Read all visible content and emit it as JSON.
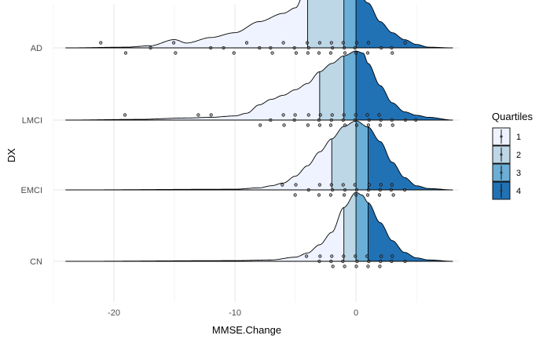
{
  "chart_data": {
    "type": "ridgeline-density-with-jittered-points",
    "xlabel": "MMSE.Change",
    "ylabel": "DX",
    "xlim": [
      -25,
      8.5
    ],
    "x_ticks": [
      -20,
      -10,
      0
    ],
    "x_minor_gridlines": [
      -25,
      -15,
      -5,
      5
    ],
    "grid": true,
    "categories": [
      "CN",
      "EMCI",
      "LMCI",
      "AD"
    ],
    "legend": {
      "title": "Quartiles",
      "position": "right",
      "entries": [
        {
          "label": "1",
          "color": "#EFF3FF"
        },
        {
          "label": "2",
          "color": "#BDD7E7"
        },
        {
          "label": "3",
          "color": "#6BAED6"
        },
        {
          "label": "4",
          "color": "#2171B5"
        }
      ]
    },
    "series": [
      {
        "category": "AD",
        "quartiles": [
          -4,
          -1,
          0
        ],
        "density": [
          [
            -24,
            0.0
          ],
          [
            -19,
            0.01
          ],
          [
            -17,
            0.03
          ],
          [
            -15,
            0.12
          ],
          [
            -14,
            0.07
          ],
          [
            -12,
            0.15
          ],
          [
            -10,
            0.22
          ],
          [
            -8,
            0.38
          ],
          [
            -6,
            0.5
          ],
          [
            -5,
            0.58
          ],
          [
            -4,
            0.92
          ],
          [
            -3,
            0.94
          ],
          [
            -2,
            0.92
          ],
          [
            -1,
            0.88
          ],
          [
            0,
            0.85
          ],
          [
            1,
            0.65
          ],
          [
            2,
            0.38
          ],
          [
            3,
            0.22
          ],
          [
            4,
            0.12
          ],
          [
            5,
            0.05
          ],
          [
            6,
            0.01
          ],
          [
            8,
            0.0
          ]
        ],
        "points": [
          [
            -21,
            -1
          ],
          [
            -19,
            1
          ],
          [
            -17,
            0
          ],
          [
            -15,
            1
          ],
          [
            -15,
            -1
          ],
          [
            -12,
            0
          ],
          [
            -11,
            0
          ],
          [
            -10,
            1
          ],
          [
            -9,
            -1
          ],
          [
            -8,
            0
          ],
          [
            -7,
            1
          ],
          [
            -7,
            0
          ],
          [
            -6,
            -1
          ],
          [
            -5,
            1
          ],
          [
            -5,
            0
          ],
          [
            -4,
            -1
          ],
          [
            -4,
            1
          ],
          [
            -4,
            0
          ],
          [
            -3,
            1
          ],
          [
            -3,
            -1
          ],
          [
            -2,
            0
          ],
          [
            -2,
            1
          ],
          [
            -2,
            -1
          ],
          [
            -1,
            0
          ],
          [
            -1,
            1
          ],
          [
            -1,
            -1
          ],
          [
            0,
            1
          ],
          [
            0,
            -1
          ],
          [
            0,
            0
          ],
          [
            1,
            1
          ],
          [
            1,
            -1
          ],
          [
            2,
            0
          ],
          [
            3,
            0
          ],
          [
            3,
            1
          ],
          [
            4,
            -1
          ]
        ]
      },
      {
        "category": "LMCI",
        "quartiles": [
          -3,
          -1,
          0
        ],
        "density": [
          [
            -24,
            0.0
          ],
          [
            -18,
            0.01
          ],
          [
            -14,
            0.03
          ],
          [
            -12,
            0.04
          ],
          [
            -10,
            0.06
          ],
          [
            -9,
            0.1
          ],
          [
            -8,
            0.22
          ],
          [
            -7,
            0.3
          ],
          [
            -6,
            0.36
          ],
          [
            -5,
            0.44
          ],
          [
            -4,
            0.53
          ],
          [
            -3,
            0.7
          ],
          [
            -2,
            0.82
          ],
          [
            -1,
            0.93
          ],
          [
            0,
            1.0
          ],
          [
            0.6,
            0.97
          ],
          [
            1,
            0.82
          ],
          [
            2,
            0.5
          ],
          [
            3,
            0.25
          ],
          [
            4,
            0.12
          ],
          [
            5,
            0.07
          ],
          [
            6,
            0.04
          ],
          [
            8,
            0.0
          ]
        ],
        "points": [
          [
            -19,
            -1
          ],
          [
            -13,
            -1
          ],
          [
            -12,
            -1
          ],
          [
            -8,
            1
          ],
          [
            -7,
            0
          ],
          [
            -6,
            -1
          ],
          [
            -6,
            1
          ],
          [
            -5,
            0
          ],
          [
            -5,
            -1
          ],
          [
            -4,
            1
          ],
          [
            -4,
            -1
          ],
          [
            -3,
            0
          ],
          [
            -3,
            1
          ],
          [
            -3,
            -1
          ],
          [
            -2,
            1
          ],
          [
            -2,
            0
          ],
          [
            -2,
            -1
          ],
          [
            -1,
            1
          ],
          [
            -1,
            0
          ],
          [
            -1,
            -1
          ],
          [
            0,
            1
          ],
          [
            0,
            0
          ],
          [
            0,
            -1
          ],
          [
            1,
            1
          ],
          [
            1,
            0
          ],
          [
            1,
            -1
          ],
          [
            2,
            1
          ],
          [
            2,
            0
          ],
          [
            2,
            -1
          ],
          [
            3,
            0
          ],
          [
            3,
            1
          ],
          [
            4,
            0
          ],
          [
            5,
            0
          ]
        ]
      },
      {
        "category": "EMCI",
        "quartiles": [
          -2,
          0,
          1
        ],
        "density": [
          [
            -24,
            0.0
          ],
          [
            -10,
            0.01
          ],
          [
            -8,
            0.03
          ],
          [
            -7,
            0.06
          ],
          [
            -6,
            0.1
          ],
          [
            -5,
            0.2
          ],
          [
            -4,
            0.35
          ],
          [
            -3,
            0.55
          ],
          [
            -2,
            0.74
          ],
          [
            -1,
            0.92
          ],
          [
            0,
            1.0
          ],
          [
            1,
            0.91
          ],
          [
            2,
            0.7
          ],
          [
            3,
            0.4
          ],
          [
            4,
            0.18
          ],
          [
            5,
            0.06
          ],
          [
            6,
            0.02
          ],
          [
            8,
            0.0
          ]
        ],
        "points": [
          [
            -6,
            -1
          ],
          [
            -5,
            1
          ],
          [
            -5,
            -1
          ],
          [
            -4,
            0
          ],
          [
            -3,
            1
          ],
          [
            -3,
            -1
          ],
          [
            -2,
            0
          ],
          [
            -2,
            1
          ],
          [
            -2,
            -1
          ],
          [
            -1,
            1
          ],
          [
            -1,
            0
          ],
          [
            -1,
            -1
          ],
          [
            0,
            1
          ],
          [
            0,
            0
          ],
          [
            0,
            -1
          ],
          [
            1,
            1
          ],
          [
            1,
            0
          ],
          [
            1,
            -1
          ],
          [
            2,
            1
          ],
          [
            2,
            0
          ],
          [
            2,
            -1
          ],
          [
            3,
            0
          ],
          [
            3,
            -1
          ],
          [
            4,
            0
          ],
          [
            3,
            1
          ]
        ]
      },
      {
        "category": "CN",
        "quartiles": [
          -1,
          0,
          1
        ],
        "density": [
          [
            -24,
            0.0
          ],
          [
            -10,
            0.01
          ],
          [
            -7,
            0.02
          ],
          [
            -5,
            0.06
          ],
          [
            -4,
            0.12
          ],
          [
            -3,
            0.24
          ],
          [
            -2,
            0.42
          ],
          [
            -1,
            0.78
          ],
          [
            0,
            1.0
          ],
          [
            0.5,
            0.96
          ],
          [
            1,
            0.85
          ],
          [
            2,
            0.56
          ],
          [
            3,
            0.3
          ],
          [
            4,
            0.13
          ],
          [
            5,
            0.05
          ],
          [
            6,
            0.02
          ],
          [
            8,
            0.0
          ]
        ],
        "points": [
          [
            -4,
            -1
          ],
          [
            -3,
            0
          ],
          [
            -3,
            -1
          ],
          [
            -2,
            1
          ],
          [
            -2,
            0
          ],
          [
            -2,
            -1
          ],
          [
            -1,
            1
          ],
          [
            -1,
            0
          ],
          [
            -1,
            -1
          ],
          [
            0,
            1
          ],
          [
            0,
            0
          ],
          [
            0,
            -1
          ],
          [
            1,
            1
          ],
          [
            1,
            0
          ],
          [
            1,
            -1
          ],
          [
            2,
            1
          ],
          [
            2,
            0
          ],
          [
            2,
            -1
          ],
          [
            3,
            0
          ],
          [
            3,
            -1
          ],
          [
            4,
            0
          ]
        ]
      }
    ]
  }
}
